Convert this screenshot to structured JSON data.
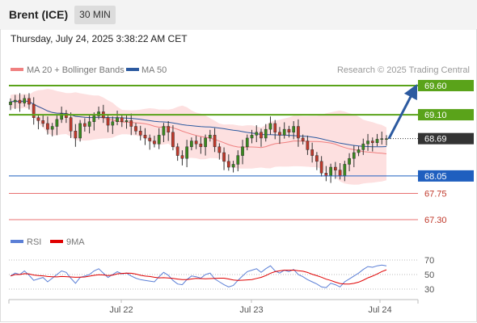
{
  "header": {
    "instrument": "Brent (ICE)",
    "interval": "30 MIN",
    "timestamp": "Thursday, July 24, 2025 3:38:22 AM CET"
  },
  "legend": {
    "ma20_label": "MA 20 + Bollinger Bands",
    "ma20_color": "#f08080",
    "ma50_label": "MA 50",
    "ma50_color": "#2c5aa0",
    "credit": "Research © 2025 Trading Central"
  },
  "rsi_legend": {
    "rsi_label": "RSI",
    "rsi_color": "#5b7fd6",
    "ma_label": "9MA",
    "ma_color": "#e00000"
  },
  "chart_data": {
    "type": "candlestick",
    "price_range": [
      67.1,
      69.75
    ],
    "levels": [
      {
        "value": "69.60",
        "kind": "resistance",
        "color": "#5aa31a"
      },
      {
        "value": "69.10",
        "kind": "resistance",
        "color": "#5aa31a"
      },
      {
        "value": "68.69",
        "kind": "current",
        "color": "#333333"
      },
      {
        "value": "68.05",
        "kind": "support",
        "color": "#1f5fbf"
      },
      {
        "value": "67.75",
        "kind": "support",
        "color": "#e87070"
      },
      {
        "value": "67.30",
        "kind": "support",
        "color": "#e87070"
      }
    ],
    "x_ticks": [
      "Jul 22",
      "Jul 23",
      "Jul 24"
    ],
    "rsi_ticks": [
      "70",
      "50",
      "30"
    ],
    "rsi_range": [
      20,
      80
    ],
    "closes": [
      69.32,
      69.35,
      69.3,
      69.38,
      69.28,
      69.05,
      69.0,
      68.95,
      68.85,
      68.9,
      69.02,
      69.12,
      69.05,
      68.82,
      68.7,
      68.95,
      68.9,
      68.98,
      69.08,
      69.15,
      69.05,
      68.92,
      68.98,
      69.05,
      68.98,
      69.0,
      68.9,
      68.82,
      68.75,
      68.7,
      68.65,
      68.6,
      68.75,
      68.9,
      68.8,
      68.55,
      68.4,
      68.35,
      68.55,
      68.65,
      68.6,
      68.55,
      68.7,
      68.75,
      68.55,
      68.45,
      68.3,
      68.2,
      68.25,
      68.4,
      68.55,
      68.7,
      68.75,
      68.8,
      68.7,
      68.85,
      68.95,
      68.8,
      68.75,
      68.85,
      68.8,
      68.9,
      68.7,
      68.65,
      68.5,
      68.4,
      68.3,
      68.1,
      68.05,
      68.2,
      68.15,
      68.05,
      68.25,
      68.35,
      68.45,
      68.5,
      68.6,
      68.65,
      68.62,
      68.68,
      68.69,
      68.69
    ],
    "rsi": [
      48,
      52,
      50,
      55,
      49,
      42,
      44,
      46,
      40,
      45,
      50,
      55,
      53,
      45,
      38,
      46,
      48,
      50,
      55,
      58,
      52,
      46,
      50,
      54,
      51,
      52,
      48,
      45,
      43,
      42,
      41,
      40,
      47,
      53,
      49,
      42,
      37,
      36,
      43,
      48,
      47,
      45,
      50,
      52,
      44,
      40,
      36,
      33,
      35,
      42,
      48,
      54,
      56,
      58,
      53,
      58,
      62,
      55,
      52,
      56,
      54,
      57,
      50,
      47,
      43,
      40,
      37,
      33,
      32,
      38,
      36,
      33,
      40,
      44,
      48,
      52,
      57,
      61,
      60,
      62,
      63,
      62
    ],
    "projection": {
      "from": "68.69",
      "to": "69.60"
    }
  }
}
